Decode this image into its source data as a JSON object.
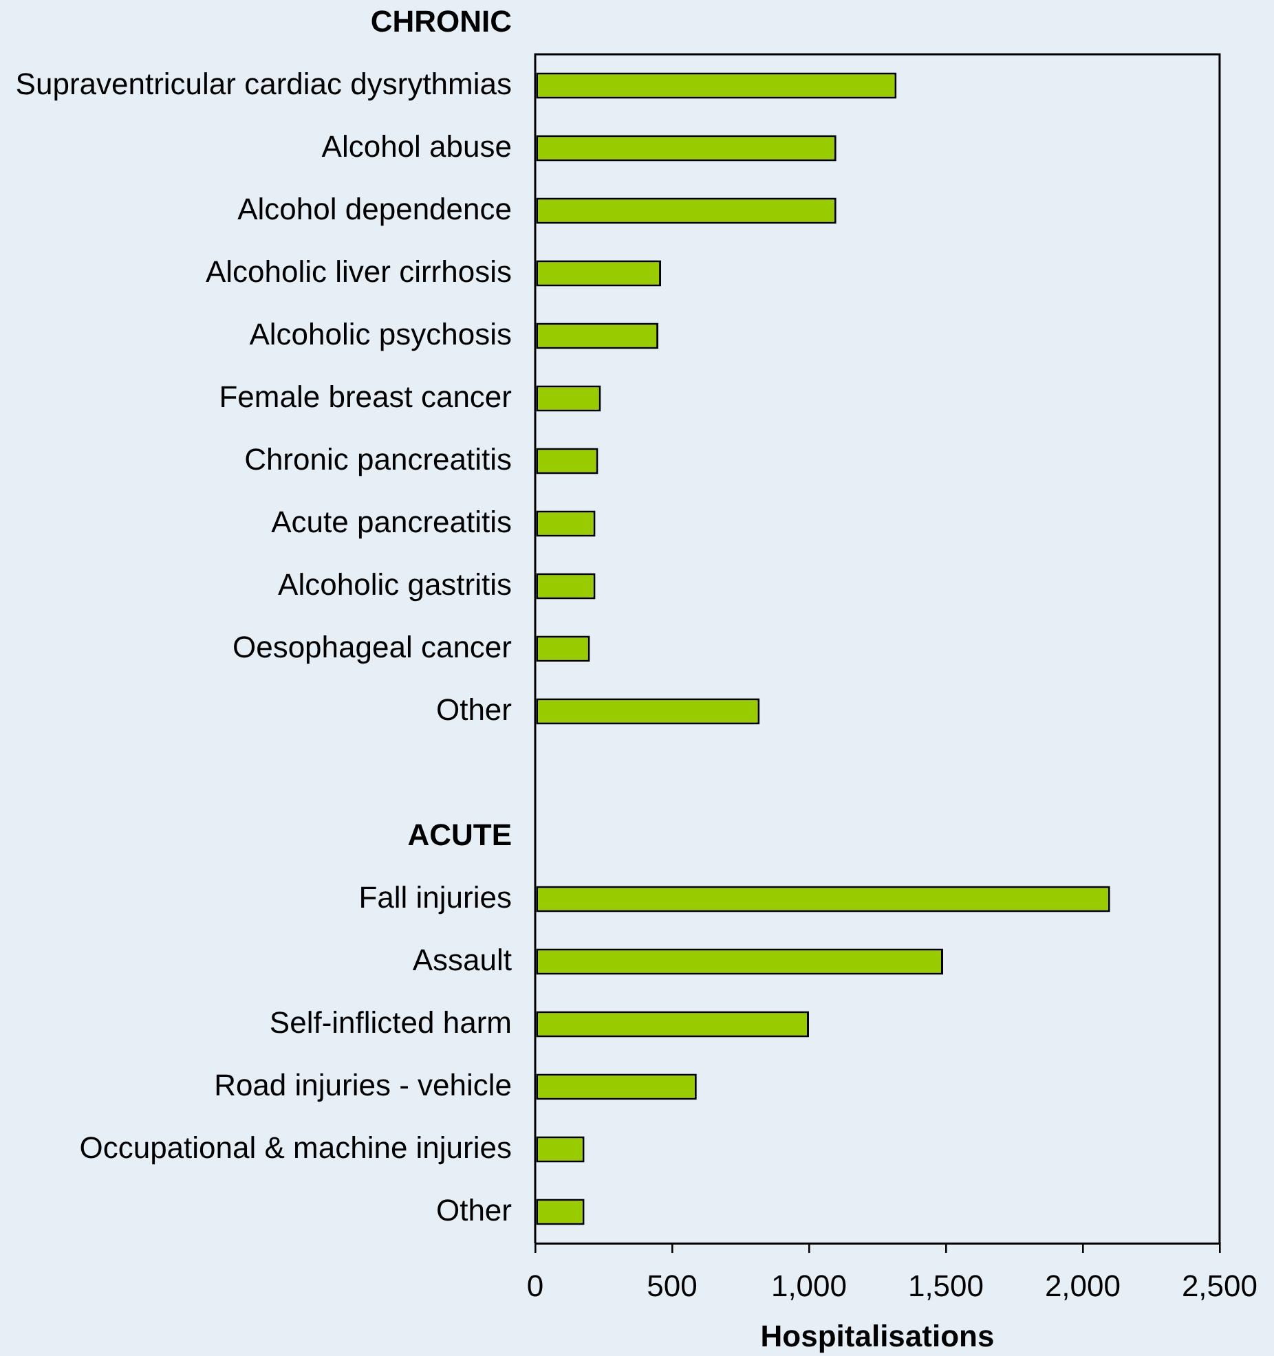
{
  "chart_data": {
    "type": "bar",
    "orientation": "horizontal",
    "xlabel": "Hospitalisations",
    "categories": [
      "CHRONIC",
      "Supraventricular cardiac dysrythmias",
      "Alcohol abuse",
      "Alcohol dependence",
      "Alcoholic liver cirrhosis",
      "Alcoholic psychosis",
      "Female breast cancer",
      "Chronic pancreatitis",
      "Acute pancreatitis",
      "Alcoholic gastritis",
      "Oesophageal cancer",
      "Other",
      null,
      "ACUTE",
      "Fall injuries",
      "Assault",
      "Self-inflicted harm",
      "Road injuries - vehicle",
      "Occupational & machine injuries",
      "Other"
    ],
    "values": [
      null,
      1320,
      1100,
      1100,
      460,
      450,
      240,
      230,
      220,
      220,
      200,
      820,
      null,
      null,
      2100,
      1490,
      1000,
      590,
      180,
      180
    ],
    "color": "#99cc00",
    "xlim": [
      0,
      2500
    ],
    "xticks": [
      0,
      500,
      {
        "value": 1000,
        "label": "1,000"
      },
      {
        "value": 1500,
        "label": "1,500"
      },
      {
        "value": 2000,
        "label": "2,000"
      },
      {
        "value": 2500,
        "label": "2,500"
      }
    ],
    "grid": false,
    "legend": false
  }
}
